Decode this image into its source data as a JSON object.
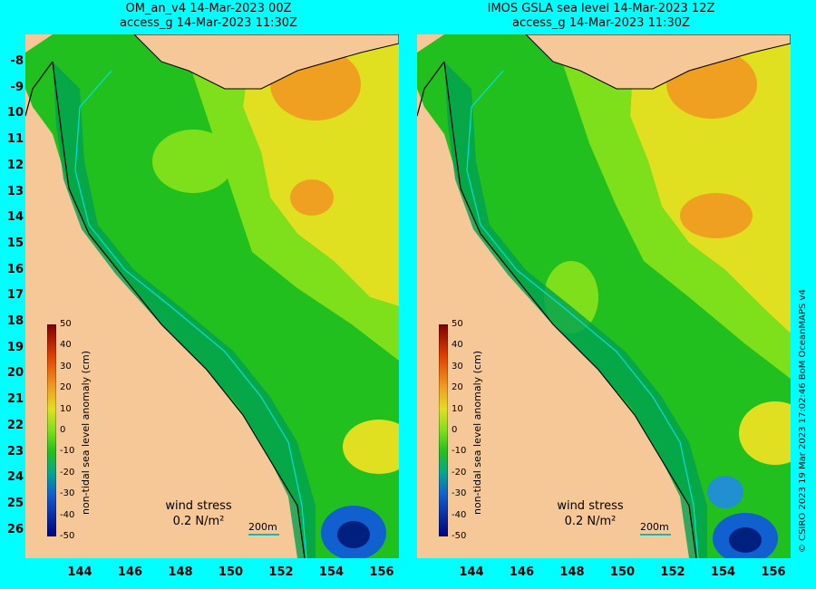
{
  "left_panel": {
    "title_line1": "OM_an_v4  14-Mar-2023 00Z",
    "title_line2": "access_g 14-Mar-2023 11:30Z"
  },
  "right_panel": {
    "title_line1": "IMOS GSLA sea level  14-Mar-2023 12Z",
    "title_line2": "access_g 14-Mar-2023 11:30Z"
  },
  "lat_labels": [
    "-8",
    "-9",
    "10",
    "11",
    "12",
    "13",
    "14",
    "15",
    "16",
    "17",
    "18",
    "19",
    "20",
    "21",
    "22",
    "23",
    "24",
    "25",
    "26"
  ],
  "lon_labels": [
    "144",
    "146",
    "148",
    "150",
    "152",
    "154",
    "156"
  ],
  "colorbar": {
    "title": "non-tidal sea level anomaly (cm)",
    "ticks": [
      "50",
      "40",
      "30",
      "20",
      "10",
      "0",
      "-10",
      "-20",
      "-30",
      "-40",
      "-50"
    ]
  },
  "legend": {
    "wind_label": "wind stress",
    "wind_value": "0.2 N/m²",
    "depth_contour": "200m"
  },
  "credit": "© CSIRO 2023   19 Mar 2023 17:02:46 BoM OceanMAPS v4",
  "colors": {
    "land": "#f6c897",
    "shelf_dark": "#00a050",
    "green_mid": "#22c01e",
    "green_light": "#7ee01a",
    "yellow": "#e0e020",
    "orange": "#f0a020",
    "blue": "#1060d0",
    "frame": "#00ffff"
  }
}
